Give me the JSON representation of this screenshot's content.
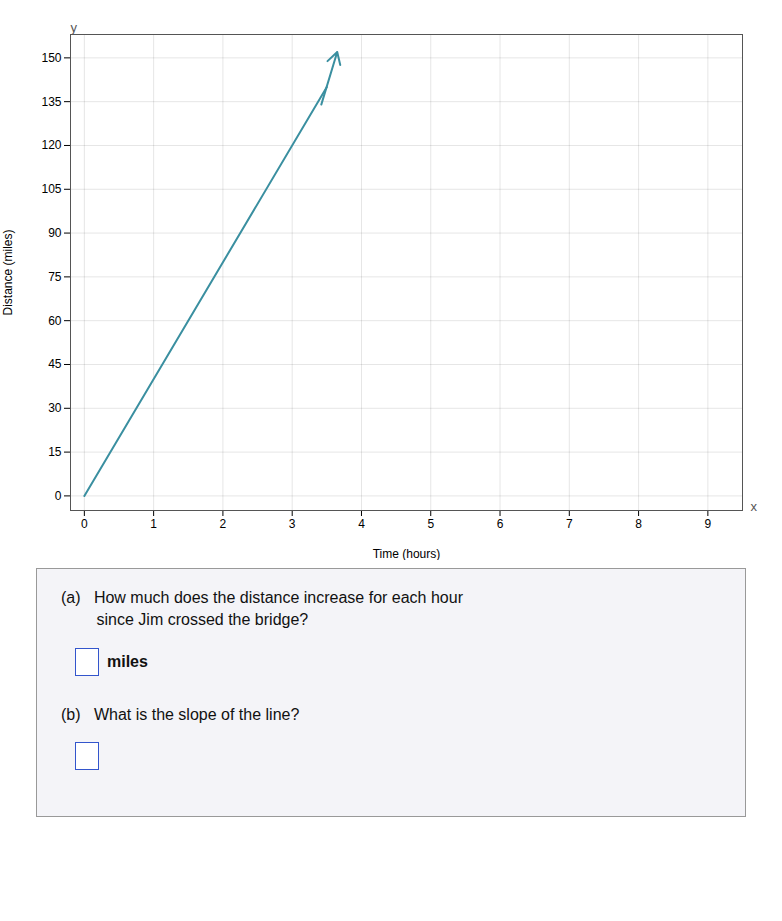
{
  "chart_data": {
    "type": "line",
    "x": [
      0,
      3.5
    ],
    "values": [
      0,
      140
    ],
    "color": "#3a8fa0",
    "arrow_x": [
      3.42,
      3.65
    ],
    "arrow_y": [
      134,
      152
    ],
    "xlabel": "Time (hours)",
    "ylabel": "Distance (miles)",
    "x_axis_letter": "x",
    "y_axis_letter": "y",
    "xlim": [
      -0.2,
      9.5
    ],
    "ylim": [
      -5,
      158
    ],
    "xticks": [
      0,
      1,
      2,
      3,
      4,
      5,
      6,
      7,
      8,
      9
    ],
    "yticks": [
      0,
      15,
      30,
      45,
      60,
      75,
      90,
      105,
      120,
      135,
      150
    ],
    "grid": true,
    "annotations": [
      {
        "text": "(a)   How much does the distance increase for each hour\n        since Jim crossed the bridge?",
        "answer_unit": "miles"
      },
      {
        "text": "(b)   What is the slope of the line?"
      }
    ]
  }
}
